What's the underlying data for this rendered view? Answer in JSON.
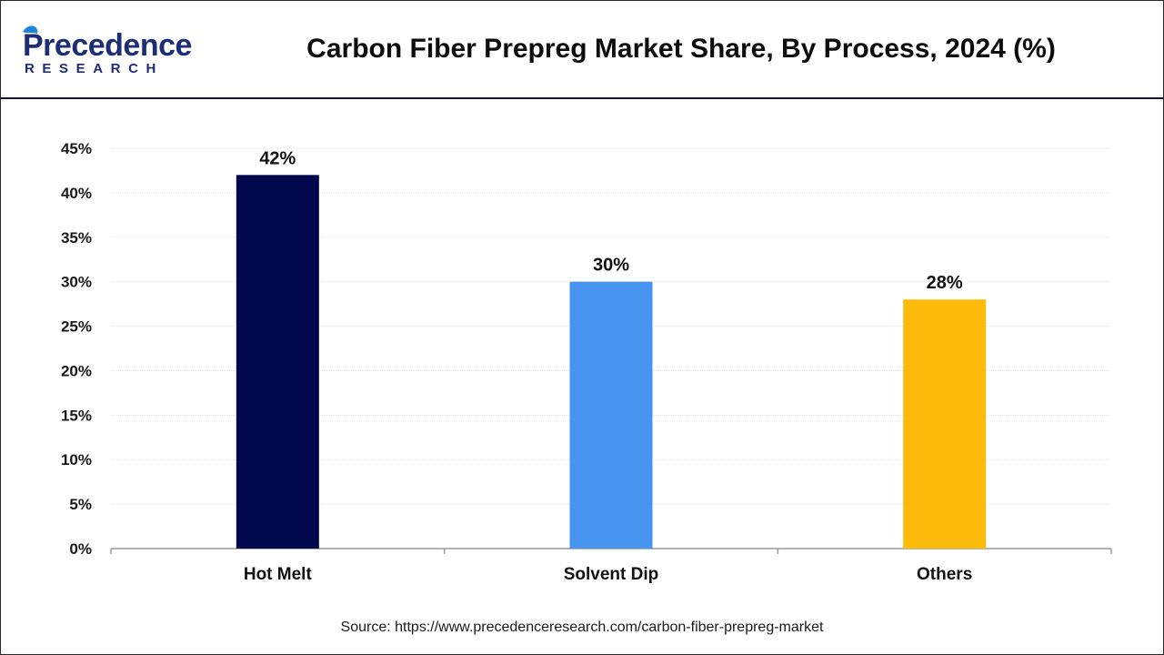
{
  "header": {
    "logo_main": "Precedence",
    "logo_sub": "RESEARCH"
  },
  "colors": {
    "bar_1": "#00074d",
    "bar_2": "#4795f0",
    "bar_3": "#fdbc0b",
    "brand_navy": "#1c2f74",
    "brand_blue": "#1f85d6"
  },
  "chart_data": {
    "type": "bar",
    "title": "Carbon Fiber Prepreg Market Share, By Process, 2024 (%)",
    "categories": [
      "Hot Melt",
      "Solvent Dip",
      "Others"
    ],
    "values": [
      42,
      30,
      28
    ],
    "data_labels": [
      "42%",
      "30%",
      "28%"
    ],
    "xlabel": "",
    "ylabel": "",
    "ylim": [
      0,
      45
    ],
    "yticks": [
      0,
      5,
      10,
      15,
      20,
      25,
      30,
      35,
      40,
      45
    ],
    "ytick_labels": [
      "0%",
      "5%",
      "10%",
      "15%",
      "20%",
      "25%",
      "30%",
      "35%",
      "40%",
      "45%"
    ],
    "grid": true,
    "legend": "none"
  },
  "footer": {
    "source": "Source: https://www.precedenceresearch.com/carbon-fiber-prepreg-market"
  }
}
